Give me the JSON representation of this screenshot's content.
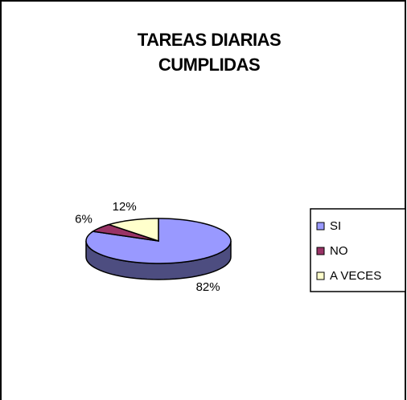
{
  "chart_data": {
    "type": "pie",
    "title": "TAREAS DIARIAS CUMPLIDAS",
    "categories": [
      "SI",
      "NO",
      "A VECES"
    ],
    "values": [
      82,
      6,
      12
    ],
    "value_labels": [
      "82%",
      "6%",
      "12%"
    ],
    "colors": [
      "#9999ff",
      "#993366",
      "#ffffcc"
    ],
    "legend": "right"
  }
}
